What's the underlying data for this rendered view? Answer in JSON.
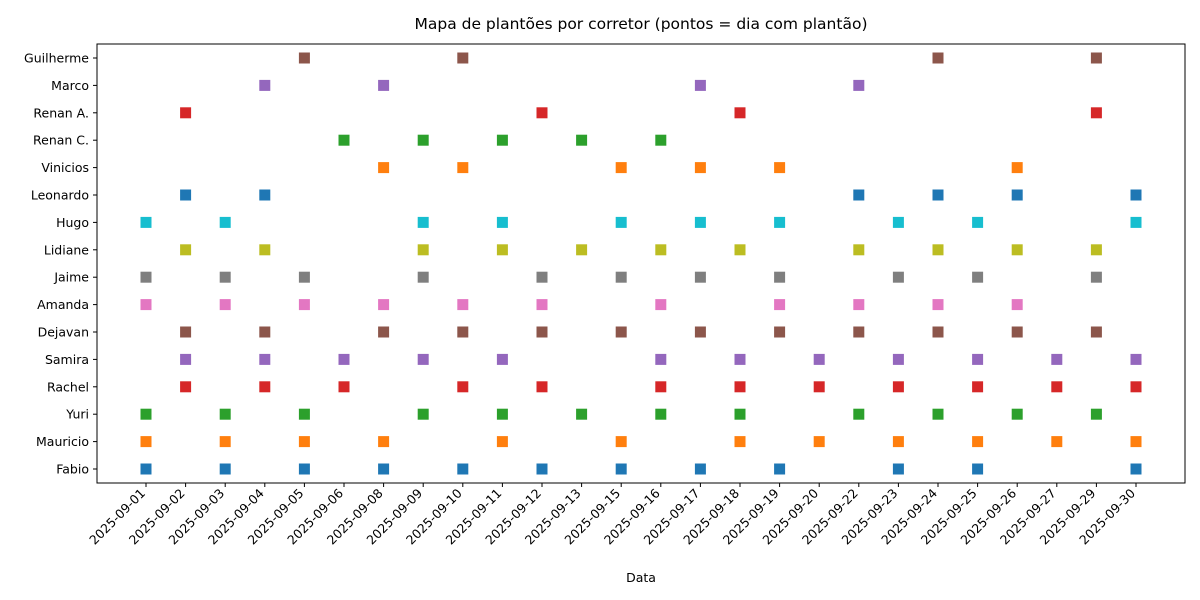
{
  "chart_data": {
    "type": "scatter",
    "title": "Mapa de plantões por corretor (pontos = dia com plantão)",
    "xlabel": "Data",
    "ylabel": "",
    "grid": false,
    "legend": "none",
    "marker": "square",
    "x": [
      "2025-09-01",
      "2025-09-02",
      "2025-09-03",
      "2025-09-04",
      "2025-09-05",
      "2025-09-06",
      "2025-09-08",
      "2025-09-09",
      "2025-09-10",
      "2025-09-11",
      "2025-09-12",
      "2025-09-13",
      "2025-09-15",
      "2025-09-16",
      "2025-09-17",
      "2025-09-18",
      "2025-09-19",
      "2025-09-20",
      "2025-09-22",
      "2025-09-23",
      "2025-09-24",
      "2025-09-25",
      "2025-09-26",
      "2025-09-27",
      "2025-09-29",
      "2025-09-30"
    ],
    "series": [
      {
        "name": "Fabio",
        "color": "#1f77b4",
        "dates": [
          "2025-09-01",
          "2025-09-03",
          "2025-09-05",
          "2025-09-08",
          "2025-09-10",
          "2025-09-12",
          "2025-09-15",
          "2025-09-17",
          "2025-09-19",
          "2025-09-23",
          "2025-09-25",
          "2025-09-30"
        ]
      },
      {
        "name": "Mauricio",
        "color": "#ff7f0e",
        "dates": [
          "2025-09-01",
          "2025-09-03",
          "2025-09-05",
          "2025-09-08",
          "2025-09-11",
          "2025-09-15",
          "2025-09-18",
          "2025-09-20",
          "2025-09-23",
          "2025-09-25",
          "2025-09-27",
          "2025-09-30"
        ]
      },
      {
        "name": "Yuri",
        "color": "#2ca02c",
        "dates": [
          "2025-09-01",
          "2025-09-03",
          "2025-09-05",
          "2025-09-09",
          "2025-09-11",
          "2025-09-13",
          "2025-09-16",
          "2025-09-18",
          "2025-09-22",
          "2025-09-24",
          "2025-09-26",
          "2025-09-29"
        ]
      },
      {
        "name": "Rachel",
        "color": "#d62728",
        "dates": [
          "2025-09-02",
          "2025-09-04",
          "2025-09-06",
          "2025-09-10",
          "2025-09-12",
          "2025-09-16",
          "2025-09-18",
          "2025-09-20",
          "2025-09-23",
          "2025-09-25",
          "2025-09-27",
          "2025-09-30"
        ]
      },
      {
        "name": "Samira",
        "color": "#9467bd",
        "dates": [
          "2025-09-02",
          "2025-09-04",
          "2025-09-06",
          "2025-09-09",
          "2025-09-11",
          "2025-09-16",
          "2025-09-18",
          "2025-09-20",
          "2025-09-23",
          "2025-09-25",
          "2025-09-27",
          "2025-09-30"
        ]
      },
      {
        "name": "Dejavan",
        "color": "#8c564b",
        "dates": [
          "2025-09-02",
          "2025-09-04",
          "2025-09-08",
          "2025-09-10",
          "2025-09-12",
          "2025-09-15",
          "2025-09-17",
          "2025-09-19",
          "2025-09-22",
          "2025-09-24",
          "2025-09-26",
          "2025-09-29"
        ]
      },
      {
        "name": "Amanda",
        "color": "#e377c2",
        "dates": [
          "2025-09-01",
          "2025-09-03",
          "2025-09-05",
          "2025-09-08",
          "2025-09-10",
          "2025-09-12",
          "2025-09-16",
          "2025-09-19",
          "2025-09-22",
          "2025-09-24",
          "2025-09-26"
        ]
      },
      {
        "name": "Jaime",
        "color": "#7f7f7f",
        "dates": [
          "2025-09-01",
          "2025-09-03",
          "2025-09-05",
          "2025-09-09",
          "2025-09-12",
          "2025-09-15",
          "2025-09-17",
          "2025-09-19",
          "2025-09-23",
          "2025-09-25",
          "2025-09-29"
        ]
      },
      {
        "name": "Lidiane",
        "color": "#bcbd22",
        "dates": [
          "2025-09-02",
          "2025-09-04",
          "2025-09-09",
          "2025-09-11",
          "2025-09-13",
          "2025-09-16",
          "2025-09-18",
          "2025-09-22",
          "2025-09-24",
          "2025-09-26",
          "2025-09-29"
        ]
      },
      {
        "name": "Hugo",
        "color": "#17becf",
        "dates": [
          "2025-09-01",
          "2025-09-03",
          "2025-09-09",
          "2025-09-11",
          "2025-09-15",
          "2025-09-17",
          "2025-09-19",
          "2025-09-23",
          "2025-09-25",
          "2025-09-30"
        ]
      },
      {
        "name": "Leonardo",
        "color": "#1f77b4",
        "dates": [
          "2025-09-02",
          "2025-09-04",
          "2025-09-22",
          "2025-09-24",
          "2025-09-26",
          "2025-09-30"
        ]
      },
      {
        "name": "Vinicios",
        "color": "#ff7f0e",
        "dates": [
          "2025-09-08",
          "2025-09-10",
          "2025-09-15",
          "2025-09-17",
          "2025-09-19",
          "2025-09-26"
        ]
      },
      {
        "name": "Renan C.",
        "color": "#2ca02c",
        "dates": [
          "2025-09-06",
          "2025-09-09",
          "2025-09-11",
          "2025-09-13",
          "2025-09-16"
        ]
      },
      {
        "name": "Renan A.",
        "color": "#d62728",
        "dates": [
          "2025-09-02",
          "2025-09-12",
          "2025-09-18",
          "2025-09-29"
        ]
      },
      {
        "name": "Marco",
        "color": "#9467bd",
        "dates": [
          "2025-09-04",
          "2025-09-08",
          "2025-09-17",
          "2025-09-22"
        ]
      },
      {
        "name": "Guilherme",
        "color": "#8c564b",
        "dates": [
          "2025-09-05",
          "2025-09-10",
          "2025-09-24",
          "2025-09-29"
        ]
      }
    ]
  }
}
